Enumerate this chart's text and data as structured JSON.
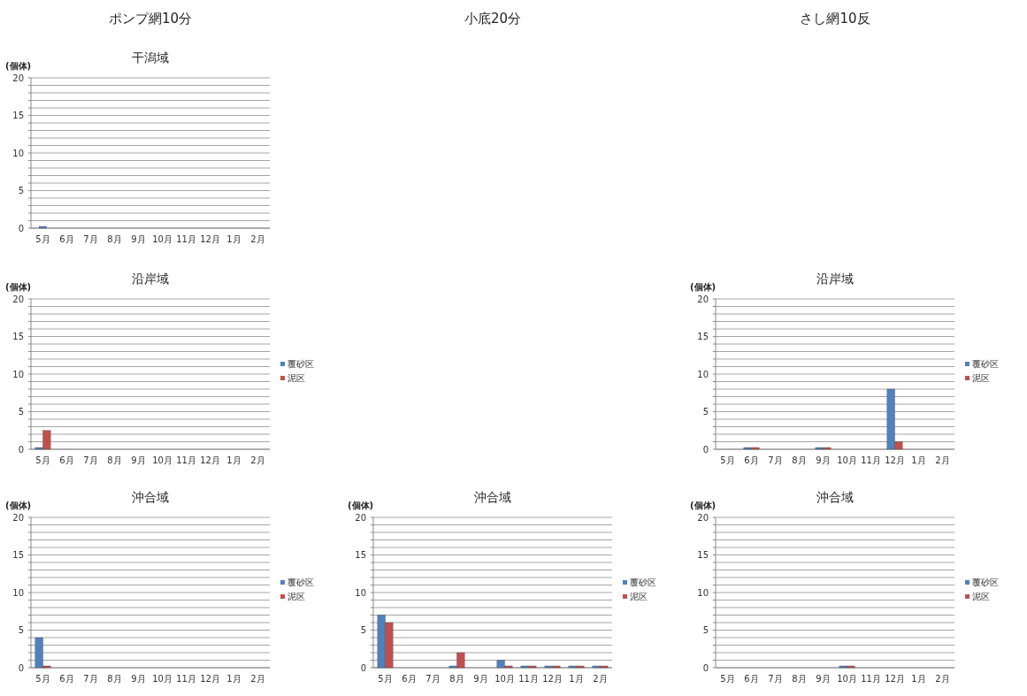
{
  "chart_data": [
    {
      "type": "bar",
      "title": "干潟域",
      "ylabel": "(個体)",
      "annotations": [
        "ポンプ網10分"
      ],
      "categories": [
        "5月",
        "6月",
        "7月",
        "8月",
        "9月",
        "10月",
        "11月",
        "12月",
        "1月",
        "2月"
      ],
      "ylim": [
        0,
        20
      ],
      "yticks": [
        0,
        {
          "value": 1,
          "label": null
        },
        {
          "value": 2,
          "label": null
        },
        {
          "value": 3,
          "label": null
        },
        {
          "value": 4,
          "label": null
        },
        5,
        {
          "value": 6,
          "label": null
        },
        {
          "value": 7,
          "label": null
        },
        {
          "value": 8,
          "label": null
        },
        {
          "value": 9,
          "label": null
        },
        10,
        {
          "value": 11,
          "label": null
        },
        {
          "value": 12,
          "label": null
        },
        {
          "value": 13,
          "label": null
        },
        {
          "value": 14,
          "label": null
        },
        15,
        {
          "value": 16,
          "label": null
        },
        {
          "value": 17,
          "label": null
        },
        {
          "value": 18,
          "label": null
        },
        {
          "value": 19,
          "label": null
        },
        20
      ],
      "grid": "y",
      "series": [
        {
          "color": "#4f81bd",
          "values": [
            0,
            null,
            null,
            null,
            null,
            null,
            null,
            null,
            null,
            null
          ]
        }
      ]
    },
    {
      "type": "bar",
      "title": "沿岸域",
      "ylabel": "(個体)",
      "categories": [
        "5月",
        "6月",
        "7月",
        "8月",
        "9月",
        "10月",
        "11月",
        "12月",
        "1月",
        "2月"
      ],
      "ylim": [
        0,
        20
      ],
      "yticks": [
        0,
        {
          "value": 1,
          "label": null
        },
        {
          "value": 2,
          "label": null
        },
        {
          "value": 3,
          "label": null
        },
        {
          "value": 4,
          "label": null
        },
        5,
        {
          "value": 6,
          "label": null
        },
        {
          "value": 7,
          "label": null
        },
        {
          "value": 8,
          "label": null
        },
        {
          "value": 9,
          "label": null
        },
        10,
        {
          "value": 11,
          "label": null
        },
        {
          "value": 12,
          "label": null
        },
        {
          "value": 13,
          "label": null
        },
        {
          "value": 14,
          "label": null
        },
        15,
        {
          "value": 16,
          "label": null
        },
        {
          "value": 17,
          "label": null
        },
        {
          "value": 18,
          "label": null
        },
        {
          "value": 19,
          "label": null
        },
        20
      ],
      "grid": "y",
      "legend": "right",
      "series": [
        {
          "name": "覆砂区",
          "color": "#4f81bd",
          "values": [
            0,
            null,
            null,
            null,
            null,
            null,
            null,
            null,
            null,
            null
          ]
        },
        {
          "name": "泥区",
          "color": "#c0504d",
          "values": [
            2.5,
            null,
            null,
            null,
            null,
            null,
            null,
            null,
            null,
            null
          ]
        }
      ]
    },
    {
      "type": "bar",
      "title": "沖合域",
      "ylabel": "(個体)",
      "categories": [
        "5月",
        "6月",
        "7月",
        "8月",
        "9月",
        "10月",
        "11月",
        "12月",
        "1月",
        "2月"
      ],
      "ylim": [
        0,
        20
      ],
      "yticks": [
        0,
        {
          "value": 1,
          "label": null
        },
        {
          "value": 2,
          "label": null
        },
        {
          "value": 3,
          "label": null
        },
        {
          "value": 4,
          "label": null
        },
        5,
        {
          "value": 6,
          "label": null
        },
        {
          "value": 7,
          "label": null
        },
        {
          "value": 8,
          "label": null
        },
        {
          "value": 9,
          "label": null
        },
        10,
        {
          "value": 11,
          "label": null
        },
        {
          "value": 12,
          "label": null
        },
        {
          "value": 13,
          "label": null
        },
        {
          "value": 14,
          "label": null
        },
        15,
        {
          "value": 16,
          "label": null
        },
        {
          "value": 17,
          "label": null
        },
        {
          "value": 18,
          "label": null
        },
        {
          "value": 19,
          "label": null
        },
        20
      ],
      "grid": "y",
      "legend": "right",
      "series": [
        {
          "name": "覆砂区",
          "color": "#4f81bd",
          "values": [
            4,
            null,
            null,
            null,
            null,
            null,
            null,
            null,
            null,
            null
          ]
        },
        {
          "name": "泥区",
          "color": "#c0504d",
          "values": [
            0,
            null,
            null,
            null,
            null,
            null,
            null,
            null,
            null,
            null
          ]
        }
      ]
    },
    {
      "type": "bar",
      "title": "沖合域",
      "ylabel": "(個体)",
      "annotations": [
        "小底20分"
      ],
      "categories": [
        "5月",
        "6月",
        "7月",
        "8月",
        "9月",
        "10月",
        "11月",
        "12月",
        "1月",
        "2月"
      ],
      "ylim": [
        0,
        20
      ],
      "yticks": [
        0,
        {
          "value": 1,
          "label": null
        },
        {
          "value": 2,
          "label": null
        },
        {
          "value": 3,
          "label": null
        },
        {
          "value": 4,
          "label": null
        },
        5,
        {
          "value": 6,
          "label": null
        },
        {
          "value": 7,
          "label": null
        },
        {
          "value": 8,
          "label": null
        },
        {
          "value": 9,
          "label": null
        },
        10,
        {
          "value": 11,
          "label": null
        },
        {
          "value": 12,
          "label": null
        },
        {
          "value": 13,
          "label": null
        },
        {
          "value": 14,
          "label": null
        },
        15,
        {
          "value": 16,
          "label": null
        },
        {
          "value": 17,
          "label": null
        },
        {
          "value": 18,
          "label": null
        },
        {
          "value": 19,
          "label": null
        },
        20
      ],
      "grid": "y",
      "legend": "right",
      "series": [
        {
          "name": "覆砂区",
          "color": "#4f81bd",
          "values": [
            7,
            null,
            null,
            0,
            null,
            1,
            0,
            0,
            0,
            0
          ]
        },
        {
          "name": "泥区",
          "color": "#c0504d",
          "values": [
            6,
            null,
            null,
            2,
            null,
            0,
            0,
            0,
            0,
            0
          ]
        }
      ]
    },
    {
      "type": "bar",
      "title": "沿岸域",
      "ylabel": "(個体)",
      "annotations": [
        "さし網10反"
      ],
      "categories": [
        "5月",
        "6月",
        "7月",
        "8月",
        "9月",
        "10月",
        "11月",
        "12月",
        "1月",
        "2月"
      ],
      "ylim": [
        0,
        20
      ],
      "yticks": [
        0,
        {
          "value": 1,
          "label": null
        },
        {
          "value": 2,
          "label": null
        },
        {
          "value": 3,
          "label": null
        },
        {
          "value": 4,
          "label": null
        },
        5,
        {
          "value": 6,
          "label": null
        },
        {
          "value": 7,
          "label": null
        },
        {
          "value": 8,
          "label": null
        },
        {
          "value": 9,
          "label": null
        },
        10,
        {
          "value": 11,
          "label": null
        },
        {
          "value": 12,
          "label": null
        },
        {
          "value": 13,
          "label": null
        },
        {
          "value": 14,
          "label": null
        },
        15,
        {
          "value": 16,
          "label": null
        },
        {
          "value": 17,
          "label": null
        },
        {
          "value": 18,
          "label": null
        },
        {
          "value": 19,
          "label": null
        },
        20
      ],
      "grid": "y",
      "legend": "right",
      "series": [
        {
          "name": "覆砂区",
          "color": "#4f81bd",
          "values": [
            null,
            0,
            null,
            null,
            0,
            null,
            null,
            8,
            null,
            null
          ]
        },
        {
          "name": "泥区",
          "color": "#c0504d",
          "values": [
            null,
            0,
            null,
            null,
            0,
            null,
            null,
            1,
            null,
            null
          ]
        }
      ]
    },
    {
      "type": "bar",
      "title": "沖合域",
      "ylabel": "(個体)",
      "categories": [
        "5月",
        "6月",
        "7月",
        "8月",
        "9月",
        "10月",
        "11月",
        "12月",
        "1月",
        "2月"
      ],
      "ylim": [
        0,
        20
      ],
      "yticks": [
        0,
        {
          "value": 1,
          "label": null
        },
        {
          "value": 2,
          "label": null
        },
        {
          "value": 3,
          "label": null
        },
        {
          "value": 4,
          "label": null
        },
        5,
        {
          "value": 6,
          "label": null
        },
        {
          "value": 7,
          "label": null
        },
        {
          "value": 8,
          "label": null
        },
        {
          "value": 9,
          "label": null
        },
        10,
        {
          "value": 11,
          "label": null
        },
        {
          "value": 12,
          "label": null
        },
        {
          "value": 13,
          "label": null
        },
        {
          "value": 14,
          "label": null
        },
        15,
        {
          "value": 16,
          "label": null
        },
        {
          "value": 17,
          "label": null
        },
        {
          "value": 18,
          "label": null
        },
        {
          "value": 19,
          "label": null
        },
        20
      ],
      "grid": "y",
      "legend": "right",
      "series": [
        {
          "name": "覆砂区",
          "color": "#4f81bd",
          "values": [
            null,
            null,
            null,
            null,
            null,
            0,
            null,
            null,
            null,
            null
          ]
        },
        {
          "name": "泥区",
          "color": "#c0504d",
          "values": [
            null,
            null,
            null,
            null,
            null,
            0,
            null,
            null,
            null,
            null
          ]
        }
      ]
    }
  ]
}
